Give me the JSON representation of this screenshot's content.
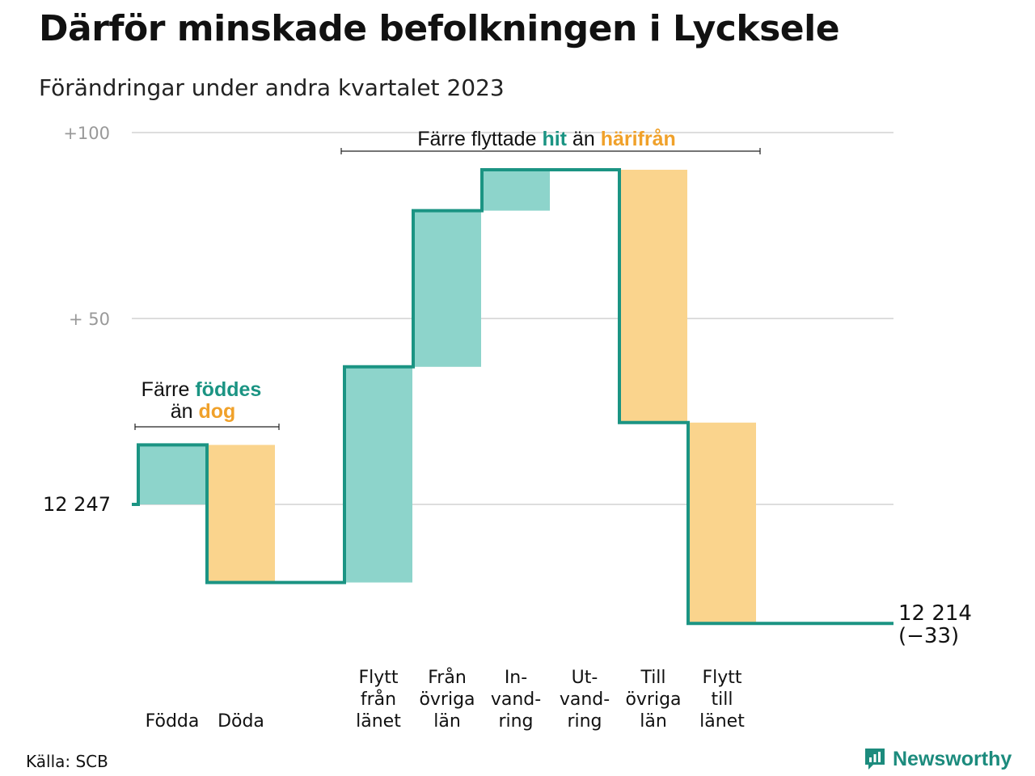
{
  "title": "Därför minskade befolkningen i Lycksele",
  "subtitle": "Förändringar under andra kvartalet 2023",
  "source": "Källa: SCB",
  "brand": "Newsworthy",
  "colors": {
    "line": "#1b9483",
    "increase": "#8dd4cb",
    "decrease": "#fad48d",
    "grid": "#dddddd",
    "teal_text": "#1b9483",
    "orange_text": "#f0a12a"
  },
  "annotations": {
    "births": {
      "line1_prefix": "Färre ",
      "line1_highlight": "föddes",
      "line2_prefix": "än ",
      "line2_highlight": "dog"
    },
    "moves": {
      "prefix": "Färre flyttade ",
      "highlight1": "hit",
      "middle": " än ",
      "highlight2": "härifrån"
    }
  },
  "chart_data": {
    "type": "waterfall",
    "start_value": 12247,
    "start_label": "12  247",
    "end_value": 12214,
    "end_label": "12 214",
    "end_change_label": "(−33)",
    "yticks": [
      {
        "value": 100,
        "label": "+100"
      },
      {
        "value": 50,
        "label": "+  50"
      },
      {
        "value": 0,
        "label": "12  247"
      }
    ],
    "ylim": [
      -33,
      100
    ],
    "grid": true,
    "categories": [
      {
        "label": [
          "Födda"
        ],
        "change": 16
      },
      {
        "label": [
          "Döda"
        ],
        "change": -37
      },
      {
        "label": [],
        "change": 0
      },
      {
        "label": [
          "Flytt",
          "från",
          "länet"
        ],
        "change": 58
      },
      {
        "label": [
          "Från",
          "övriga",
          "län"
        ],
        "change": 42
      },
      {
        "label": [
          "In-",
          "vand-",
          "ring"
        ],
        "change": 11
      },
      {
        "label": [
          "Ut-",
          "vand-",
          "ring"
        ],
        "change": 0
      },
      {
        "label": [
          "Till",
          "övriga",
          "län"
        ],
        "change": -68
      },
      {
        "label": [
          "Flytt",
          "till",
          "länet"
        ],
        "change": -54
      }
    ]
  }
}
